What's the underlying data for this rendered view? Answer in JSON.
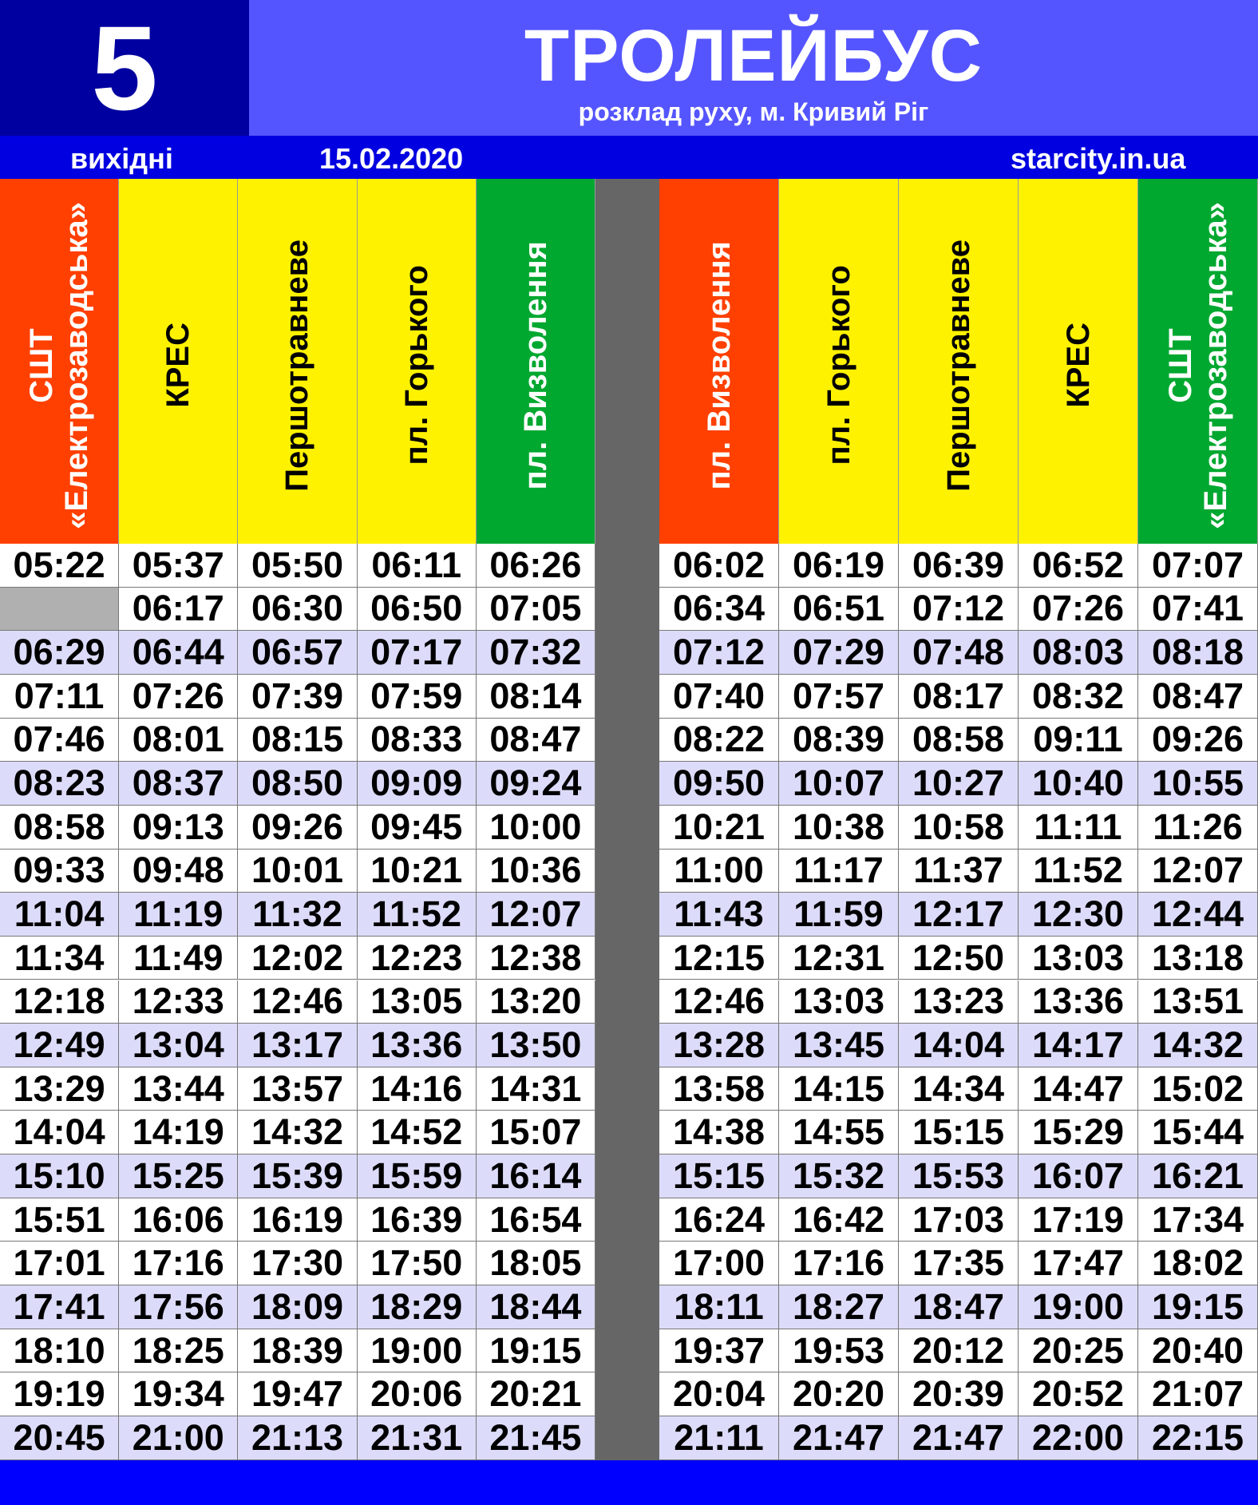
{
  "route_number": "5",
  "title": "ТРОЛЕЙБУС",
  "subtitle": "розклад руху, м. Кривий Ріг",
  "day_type": "вихідні",
  "date": "15.02.2020",
  "website": "starcity.in.ua",
  "colors": {
    "start": "#ff4000",
    "mid": "#fff200",
    "end": "#00a830",
    "zebra": "#dcdcfa",
    "blank": "#b0b0b0",
    "separator": "#666666"
  },
  "directions": [
    {
      "stops": [
        {
          "name": "СШТ\n«Електрозаводська»",
          "role": "start"
        },
        {
          "name": "КРЕС",
          "role": "mid"
        },
        {
          "name": "Першотравневе",
          "role": "mid"
        },
        {
          "name": "пл. Горького",
          "role": "mid"
        },
        {
          "name": "пл. Визволення",
          "role": "end"
        }
      ],
      "rows": [
        [
          "05:22",
          "05:37",
          "05:50",
          "06:11",
          "06:26"
        ],
        [
          "",
          "06:17",
          "06:30",
          "06:50",
          "07:05"
        ],
        [
          "06:29",
          "06:44",
          "06:57",
          "07:17",
          "07:32"
        ],
        [
          "07:11",
          "07:26",
          "07:39",
          "07:59",
          "08:14"
        ],
        [
          "07:46",
          "08:01",
          "08:15",
          "08:33",
          "08:47"
        ],
        [
          "08:23",
          "08:37",
          "08:50",
          "09:09",
          "09:24"
        ],
        [
          "08:58",
          "09:13",
          "09:26",
          "09:45",
          "10:00"
        ],
        [
          "09:33",
          "09:48",
          "10:01",
          "10:21",
          "10:36"
        ],
        [
          "11:04",
          "11:19",
          "11:32",
          "11:52",
          "12:07"
        ],
        [
          "11:34",
          "11:49",
          "12:02",
          "12:23",
          "12:38"
        ],
        [
          "12:18",
          "12:33",
          "12:46",
          "13:05",
          "13:20"
        ],
        [
          "12:49",
          "13:04",
          "13:17",
          "13:36",
          "13:50"
        ],
        [
          "13:29",
          "13:44",
          "13:57",
          "14:16",
          "14:31"
        ],
        [
          "14:04",
          "14:19",
          "14:32",
          "14:52",
          "15:07"
        ],
        [
          "15:10",
          "15:25",
          "15:39",
          "15:59",
          "16:14"
        ],
        [
          "15:51",
          "16:06",
          "16:19",
          "16:39",
          "16:54"
        ],
        [
          "17:01",
          "17:16",
          "17:30",
          "17:50",
          "18:05"
        ],
        [
          "17:41",
          "17:56",
          "18:09",
          "18:29",
          "18:44"
        ],
        [
          "18:10",
          "18:25",
          "18:39",
          "19:00",
          "19:15"
        ],
        [
          "19:19",
          "19:34",
          "19:47",
          "20:06",
          "20:21"
        ],
        [
          "20:45",
          "21:00",
          "21:13",
          "21:31",
          "21:45"
        ]
      ]
    },
    {
      "stops": [
        {
          "name": "пл. Визволення",
          "role": "start"
        },
        {
          "name": "пл. Горького",
          "role": "mid"
        },
        {
          "name": "Першотравневе",
          "role": "mid"
        },
        {
          "name": "КРЕС",
          "role": "mid"
        },
        {
          "name": "СШТ\n«Електрозаводська»",
          "role": "end"
        }
      ],
      "rows": [
        [
          "06:02",
          "06:19",
          "06:39",
          "06:52",
          "07:07"
        ],
        [
          "06:34",
          "06:51",
          "07:12",
          "07:26",
          "07:41"
        ],
        [
          "07:12",
          "07:29",
          "07:48",
          "08:03",
          "08:18"
        ],
        [
          "07:40",
          "07:57",
          "08:17",
          "08:32",
          "08:47"
        ],
        [
          "08:22",
          "08:39",
          "08:58",
          "09:11",
          "09:26"
        ],
        [
          "09:50",
          "10:07",
          "10:27",
          "10:40",
          "10:55"
        ],
        [
          "10:21",
          "10:38",
          "10:58",
          "11:11",
          "11:26"
        ],
        [
          "11:00",
          "11:17",
          "11:37",
          "11:52",
          "12:07"
        ],
        [
          "11:43",
          "11:59",
          "12:17",
          "12:30",
          "12:44"
        ],
        [
          "12:15",
          "12:31",
          "12:50",
          "13:03",
          "13:18"
        ],
        [
          "12:46",
          "13:03",
          "13:23",
          "13:36",
          "13:51"
        ],
        [
          "13:28",
          "13:45",
          "14:04",
          "14:17",
          "14:32"
        ],
        [
          "13:58",
          "14:15",
          "14:34",
          "14:47",
          "15:02"
        ],
        [
          "14:38",
          "14:55",
          "15:15",
          "15:29",
          "15:44"
        ],
        [
          "15:15",
          "15:32",
          "15:53",
          "16:07",
          "16:21"
        ],
        [
          "16:24",
          "16:42",
          "17:03",
          "17:19",
          "17:34"
        ],
        [
          "17:00",
          "17:16",
          "17:35",
          "17:47",
          "18:02"
        ],
        [
          "18:11",
          "18:27",
          "18:47",
          "19:00",
          "19:15"
        ],
        [
          "19:37",
          "19:53",
          "20:12",
          "20:25",
          "20:40"
        ],
        [
          "20:04",
          "20:20",
          "20:39",
          "20:52",
          "21:07"
        ],
        [
          "21:11",
          "21:47",
          "21:47",
          "22:00",
          "22:15"
        ]
      ]
    }
  ]
}
